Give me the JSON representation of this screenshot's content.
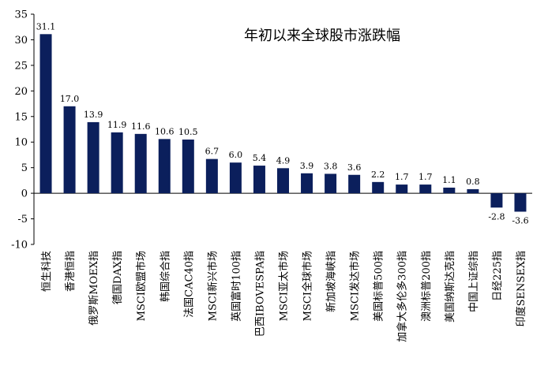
{
  "chart_data": {
    "type": "bar",
    "title": "年初以来全球股市涨跌幅",
    "xlabel": "",
    "ylabel": "",
    "ylim": [
      -10,
      35
    ],
    "yticks": [
      -10,
      -5,
      0,
      5,
      10,
      15,
      20,
      25,
      30,
      35
    ],
    "grid": false,
    "legend": "none",
    "bar_color": "#0b1f5c",
    "categories": [
      "恒生科技",
      "香港恒指",
      "俄罗斯MOEX指",
      "德国DAX指",
      "MSCI欧盟市场",
      "韩国综合指",
      "法国CAC40指",
      "MSCI新兴市场",
      "英国富时100指",
      "巴西IBOVESPA指",
      "MSCI亚太市场",
      "MSCI全球市场",
      "新加坡海峡指",
      "MSCI发达市场",
      "美国标普500指",
      "加拿大多伦多300指",
      "澳洲标普200指",
      "美国纳斯达克指",
      "中国上证综指",
      "日经225指",
      "印度SENSEX指"
    ],
    "values": [
      31.1,
      17.0,
      13.9,
      11.9,
      11.6,
      10.6,
      10.5,
      6.7,
      6.0,
      5.4,
      4.9,
      3.9,
      3.8,
      3.6,
      2.2,
      1.7,
      1.7,
      1.1,
      0.8,
      -2.8,
      -3.6
    ],
    "data_labels": [
      "31.1",
      "17.0",
      "13.9",
      "11.9",
      "11.6",
      "10.6",
      "10.5",
      "6.7",
      "6.0",
      "5.4",
      "4.9",
      "3.9",
      "3.8",
      "3.6",
      "2.2",
      "1.7",
      "1.7",
      "1.1",
      "0.8",
      "-2.8",
      "-3.6"
    ]
  }
}
